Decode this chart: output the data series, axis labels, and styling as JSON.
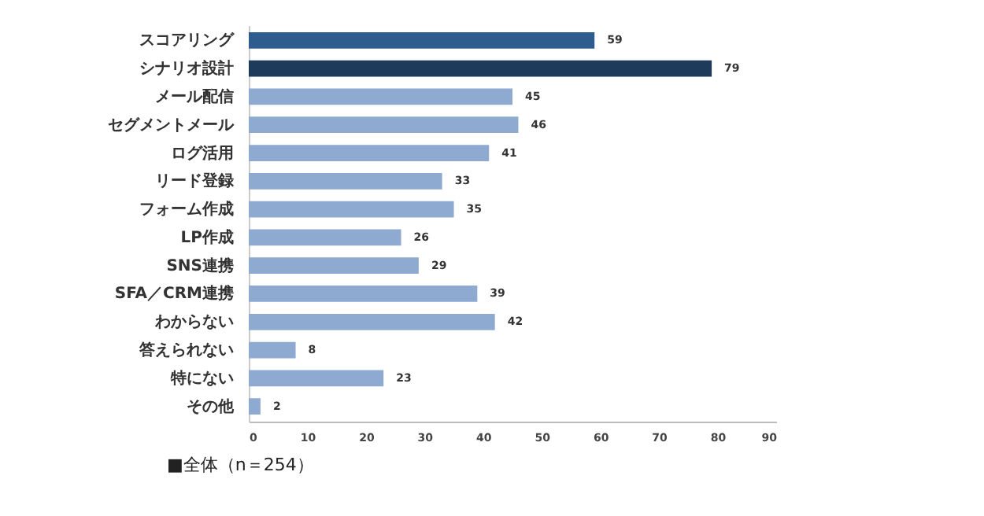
{
  "chart_data": {
    "type": "bar",
    "orientation": "horizontal",
    "categories": [
      "スコアリング",
      "シナリオ設計",
      "メール配信",
      "セグメントメール",
      "ログ活用",
      "リード登録",
      "フォーム作成",
      "LP作成",
      "SNS連携",
      "SFA／CRM連携",
      "わからない",
      "答えられない",
      "特にない",
      "その他"
    ],
    "values": [
      59,
      79,
      45,
      46,
      41,
      33,
      35,
      26,
      29,
      39,
      42,
      8,
      23,
      2
    ],
    "colors": [
      "#2e5c8e",
      "#1f3b5c",
      "#8faad0",
      "#8faad0",
      "#8faad0",
      "#8faad0",
      "#8faad0",
      "#8faad0",
      "#8faad0",
      "#8faad0",
      "#8faad0",
      "#8faad0",
      "#8faad0",
      "#8faad0"
    ],
    "xlim": [
      0,
      90
    ],
    "xticks": [
      0,
      10,
      20,
      30,
      40,
      50,
      60,
      70,
      80,
      90
    ],
    "data_labels": true,
    "grid": false,
    "annotations": [
      "■全体（n＝254）"
    ]
  }
}
